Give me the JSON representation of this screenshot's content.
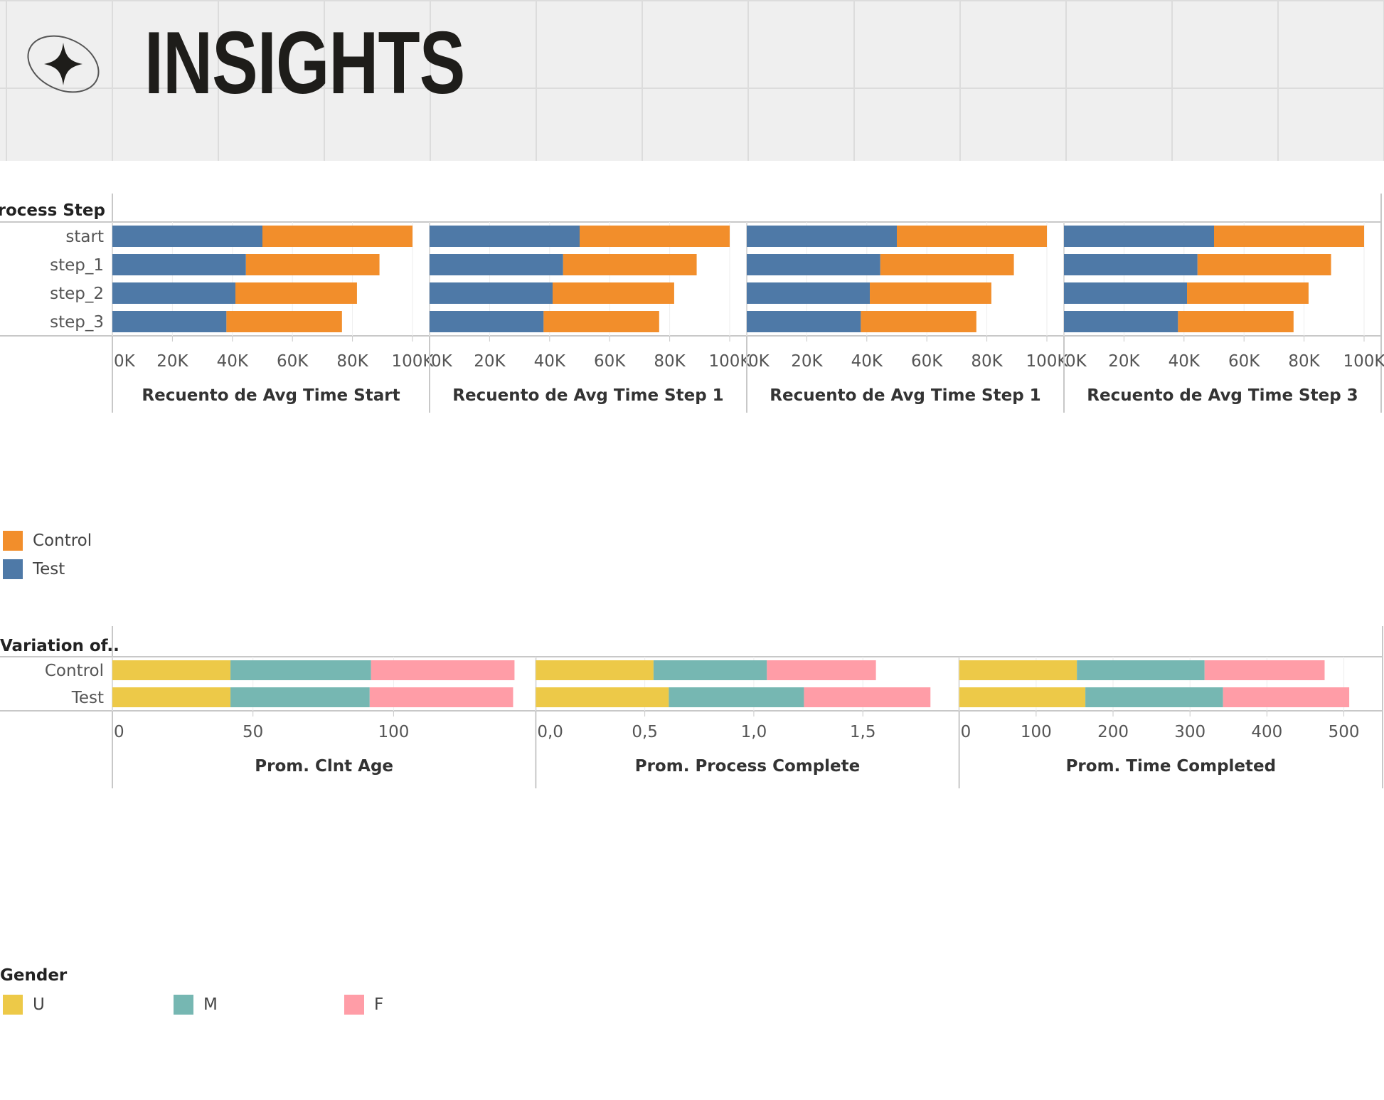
{
  "header": {
    "title": "INSIGHTS",
    "logo_icon": "sparkle-star-icon"
  },
  "colors": {
    "Control": "#f28e2b",
    "Test": "#4e79a7",
    "U": "#edc948",
    "M": "#76b7b2",
    "F": "#ff9da7",
    "axis": "#c8c8c8",
    "text": "#555555"
  },
  "chart_data": [
    {
      "type": "bar",
      "stacked": true,
      "orientation": "horizontal",
      "row_header": "Process Step",
      "categories": [
        "start",
        "step_1",
        "step_2",
        "step_3"
      ],
      "series_names": [
        "Test",
        "Control"
      ],
      "xlim": [
        0,
        100000
      ],
      "ticks": [
        0,
        20000,
        40000,
        60000,
        80000,
        100000
      ],
      "tick_labels": [
        "0K",
        "20K",
        "40K",
        "60K",
        "80K",
        "100K"
      ],
      "panels": [
        {
          "xlabel": "Recuento de Avg Time Start",
          "series": [
            {
              "name": "Test",
              "values": [
                50000,
                44500,
                41000,
                38000
              ]
            },
            {
              "name": "Control",
              "values": [
                50000,
                44500,
                40500,
                38500
              ]
            }
          ]
        },
        {
          "xlabel": "Recuento de Avg Time Step 1",
          "series": [
            {
              "name": "Test",
              "values": [
                50000,
                44500,
                41000,
                38000
              ]
            },
            {
              "name": "Control",
              "values": [
                50000,
                44500,
                40500,
                38500
              ]
            }
          ]
        },
        {
          "xlabel": "Recuento de Avg Time Step 1",
          "series": [
            {
              "name": "Test",
              "values": [
                50000,
                44500,
                41000,
                38000
              ]
            },
            {
              "name": "Control",
              "values": [
                50000,
                44500,
                40500,
                38500
              ]
            }
          ]
        },
        {
          "xlabel": "Recuento de Avg Time Step 3",
          "series": [
            {
              "name": "Test",
              "values": [
                50000,
                44500,
                41000,
                38000
              ]
            },
            {
              "name": "Control",
              "values": [
                50000,
                44500,
                40500,
                38500
              ]
            }
          ]
        }
      ],
      "legend": {
        "position": "bottom-left",
        "items": [
          "Control",
          "Test"
        ]
      }
    },
    {
      "type": "bar",
      "stacked": true,
      "orientation": "horizontal",
      "row_header": "Variation of..",
      "categories": [
        "Control",
        "Test"
      ],
      "series_names": [
        "U",
        "M",
        "F"
      ],
      "panels": [
        {
          "xlabel": "Prom. Clnt Age",
          "xlim": [
            0,
            145
          ],
          "ticks": [
            0,
            50,
            100
          ],
          "tick_labels": [
            "0",
            "50",
            "100"
          ],
          "series": [
            {
              "name": "U",
              "values": [
                42,
                42
              ]
            },
            {
              "name": "M",
              "values": [
                50,
                49.5
              ]
            },
            {
              "name": "F",
              "values": [
                51,
                51
              ]
            }
          ]
        },
        {
          "xlabel": "Prom. Process Complete",
          "xlim": [
            0,
            1.87
          ],
          "ticks": [
            0,
            0.5,
            1.0,
            1.5
          ],
          "tick_labels": [
            "0,0",
            "0,5",
            "1,0",
            "1,5"
          ],
          "series": [
            {
              "name": "U",
              "values": [
                0.54,
                0.61
              ]
            },
            {
              "name": "M",
              "values": [
                0.52,
                0.62
              ]
            },
            {
              "name": "F",
              "values": [
                0.5,
                0.58
              ]
            }
          ]
        },
        {
          "xlabel": "Prom. Time Completed",
          "xlim": [
            0,
            530
          ],
          "ticks": [
            0,
            100,
            200,
            300,
            400,
            500
          ],
          "tick_labels": [
            "0",
            "100",
            "200",
            "300",
            "400",
            "500"
          ],
          "series": [
            {
              "name": "U",
              "values": [
                153,
                164
              ]
            },
            {
              "name": "M",
              "values": [
                166,
                179
              ]
            },
            {
              "name": "F",
              "values": [
                156,
                164
              ]
            }
          ]
        }
      ],
      "legend": {
        "title": "Gender",
        "position": "bottom-left",
        "items": [
          "U",
          "M",
          "F"
        ]
      }
    }
  ]
}
